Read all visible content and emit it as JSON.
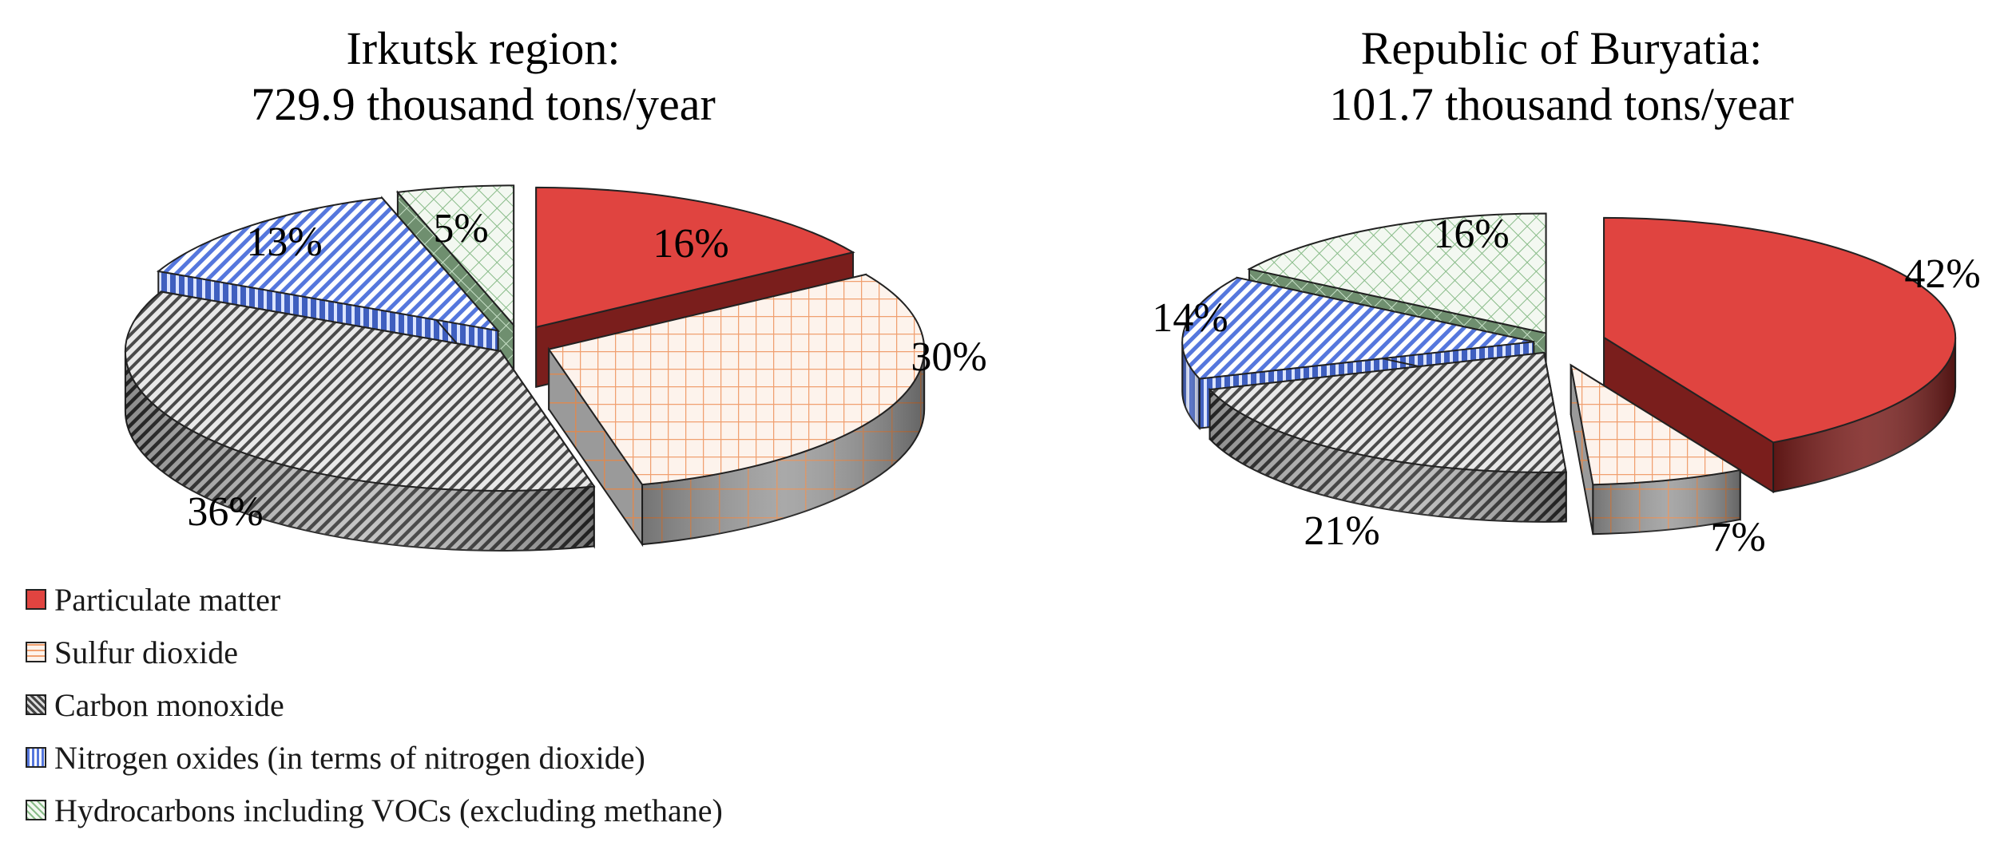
{
  "chart_data": [
    {
      "type": "pie",
      "title": "Irkutsk region:",
      "subtitle": "729.9 thousand tons/year",
      "slices": [
        {
          "label": "Particulate matter",
          "value": 16,
          "text": "16%"
        },
        {
          "label": "Sulfur dioxide",
          "value": 30,
          "text": "30%"
        },
        {
          "label": "Carbon monoxide",
          "value": 36,
          "text": "36%"
        },
        {
          "label": "Nitrogen oxides (in terms of nitrogen dioxide)",
          "value": 13,
          "text": "13%"
        },
        {
          "label": "Hydrocarbons including VOCs (excluding methane)",
          "value": 5,
          "text": "5%"
        }
      ]
    },
    {
      "type": "pie",
      "title": "Republic of Buryatia:",
      "subtitle": "101.7 thousand tons/year",
      "slices": [
        {
          "label": "Particulate matter",
          "value": 42,
          "text": "42%"
        },
        {
          "label": "Sulfur dioxide",
          "value": 7,
          "text": "7%"
        },
        {
          "label": "Carbon monoxide",
          "value": 21,
          "text": "21%"
        },
        {
          "label": "Nitrogen oxides (in terms of nitrogen dioxide)",
          "value": 14,
          "text": "14%"
        },
        {
          "label": "Hydrocarbons including VOCs (excluding methane)",
          "value": 16,
          "text": "16%"
        }
      ]
    }
  ],
  "legend": {
    "placement": "bottom-left",
    "items": [
      {
        "label": "Particulate matter",
        "color": "#e04440",
        "pattern": "solid"
      },
      {
        "label": "Sulfur dioxide",
        "color": "#f0a070",
        "pattern": "grid"
      },
      {
        "label": "Carbon monoxide",
        "color": "#555555",
        "pattern": "diagonal-stripes"
      },
      {
        "label": "Nitrogen oxides (in terms of nitrogen dioxide)",
        "color": "#5577dd",
        "pattern": "vertical-stripes"
      },
      {
        "label": "Hydrocarbons including VOCs (excluding methane)",
        "color": "#88bb88",
        "pattern": "crosshatch"
      }
    ]
  }
}
